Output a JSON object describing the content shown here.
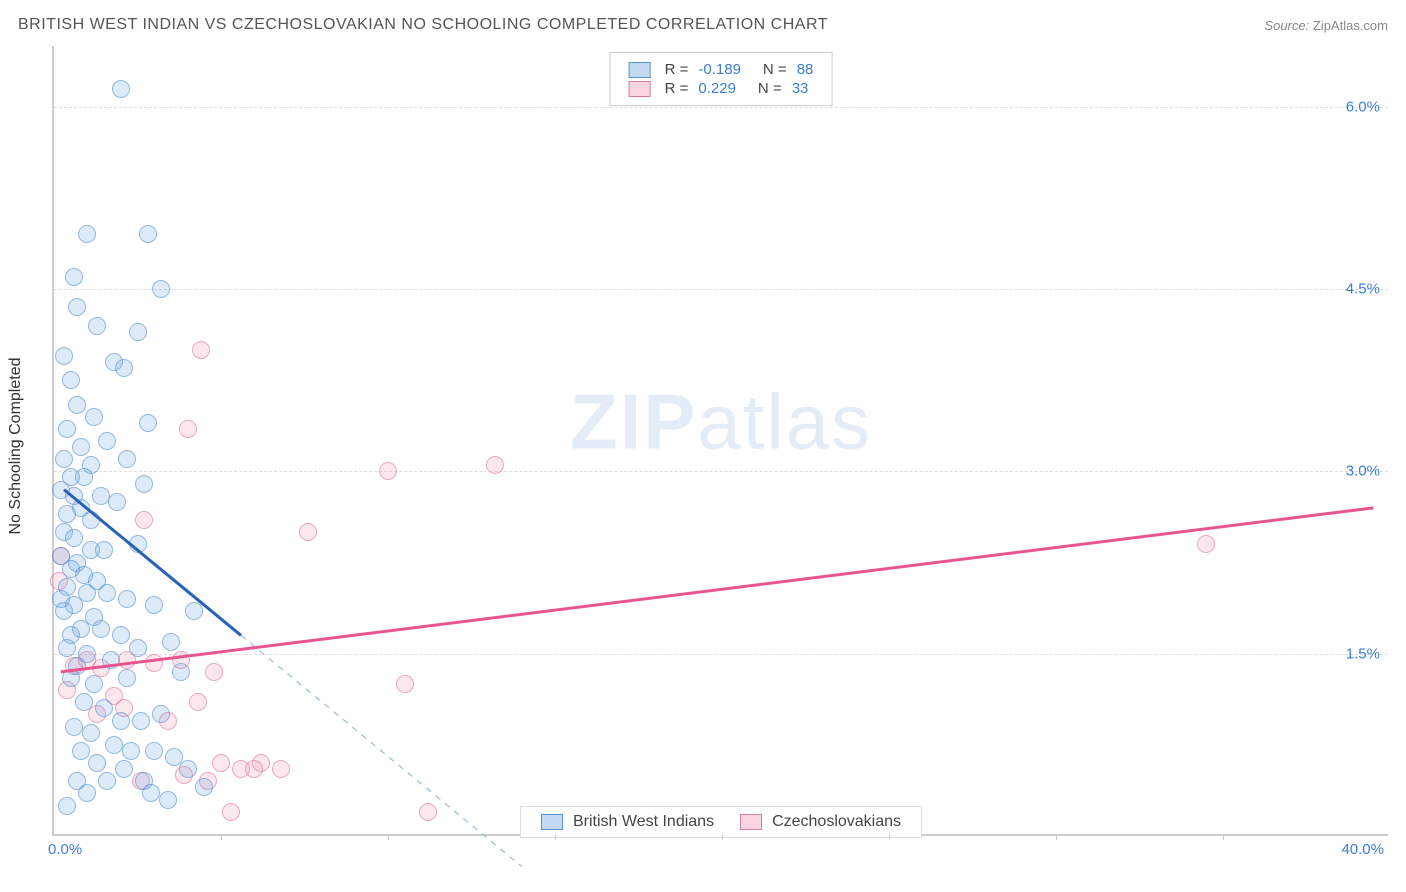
{
  "header": {
    "title": "BRITISH WEST INDIAN VS CZECHOSLOVAKIAN NO SCHOOLING COMPLETED CORRELATION CHART",
    "source_label": "Source:",
    "source_value": "ZipAtlas.com"
  },
  "chart": {
    "type": "scatter",
    "ylabel": "No Schooling Completed",
    "background_color": "#ffffff",
    "grid_color": "#dddddd",
    "axis_color": "#cccccc",
    "xlim": [
      0,
      40
    ],
    "ylim": [
      0,
      6.5
    ],
    "yticks": [
      1.5,
      3.0,
      4.5,
      6.0
    ],
    "ytick_labels": [
      "1.5%",
      "3.0%",
      "4.5%",
      "6.0%"
    ],
    "xtick_marks": [
      5,
      10,
      15,
      20,
      25,
      30,
      35
    ],
    "xmin_label": "0.0%",
    "xmax_label": "40.0%",
    "ytick_label_color": "#3b7dd8",
    "xtick_label_color": "#3b7dd8",
    "watermark": {
      "bold": "ZIP",
      "light": "atlas",
      "color": "rgba(100,150,210,0.18)",
      "fontsize": 78
    },
    "series": {
      "blue": {
        "label": "British West Indians",
        "color_fill": "rgba(107,163,226,0.35)",
        "color_stroke": "#5a93cf",
        "trend_color": "#2a62b8",
        "trend_width": 3,
        "dashed_ext_color": "#9bb8d8",
        "R": "-0.189",
        "N": "88",
        "trend": {
          "x1": 0.3,
          "y1": 2.85,
          "x2": 5.6,
          "y2": 1.65
        },
        "dashed_ext": {
          "x1": 5.6,
          "y1": 1.65,
          "x2": 14.0,
          "y2": -0.25
        },
        "points": [
          [
            2.0,
            6.15
          ],
          [
            1.0,
            4.95
          ],
          [
            2.8,
            4.95
          ],
          [
            0.6,
            4.6
          ],
          [
            3.2,
            4.5
          ],
          [
            0.7,
            4.35
          ],
          [
            1.3,
            4.2
          ],
          [
            2.5,
            4.15
          ],
          [
            0.3,
            3.95
          ],
          [
            1.8,
            3.9
          ],
          [
            2.1,
            3.85
          ],
          [
            0.5,
            3.75
          ],
          [
            0.7,
            3.55
          ],
          [
            1.2,
            3.45
          ],
          [
            2.8,
            3.4
          ],
          [
            0.4,
            3.35
          ],
          [
            0.8,
            3.2
          ],
          [
            1.6,
            3.25
          ],
          [
            0.3,
            3.1
          ],
          [
            1.1,
            3.05
          ],
          [
            2.2,
            3.1
          ],
          [
            0.5,
            2.95
          ],
          [
            0.9,
            2.95
          ],
          [
            0.2,
            2.85
          ],
          [
            0.6,
            2.8
          ],
          [
            1.4,
            2.8
          ],
          [
            0.8,
            2.7
          ],
          [
            0.4,
            2.65
          ],
          [
            1.1,
            2.6
          ],
          [
            1.9,
            2.75
          ],
          [
            2.7,
            2.9
          ],
          [
            0.3,
            2.5
          ],
          [
            0.6,
            2.45
          ],
          [
            1.1,
            2.35
          ],
          [
            0.2,
            2.3
          ],
          [
            0.7,
            2.25
          ],
          [
            1.5,
            2.35
          ],
          [
            0.5,
            2.2
          ],
          [
            0.9,
            2.15
          ],
          [
            1.3,
            2.1
          ],
          [
            2.5,
            2.4
          ],
          [
            0.4,
            2.05
          ],
          [
            1.0,
            2.0
          ],
          [
            0.2,
            1.95
          ],
          [
            0.6,
            1.9
          ],
          [
            1.6,
            2.0
          ],
          [
            2.2,
            1.95
          ],
          [
            0.3,
            1.85
          ],
          [
            1.2,
            1.8
          ],
          [
            0.8,
            1.7
          ],
          [
            3.0,
            1.9
          ],
          [
            0.5,
            1.65
          ],
          [
            1.4,
            1.7
          ],
          [
            2.0,
            1.65
          ],
          [
            4.2,
            1.85
          ],
          [
            0.4,
            1.55
          ],
          [
            1.0,
            1.5
          ],
          [
            2.5,
            1.55
          ],
          [
            3.5,
            1.6
          ],
          [
            0.7,
            1.4
          ],
          [
            1.7,
            1.45
          ],
          [
            0.5,
            1.3
          ],
          [
            1.2,
            1.25
          ],
          [
            2.2,
            1.3
          ],
          [
            3.8,
            1.35
          ],
          [
            0.9,
            1.1
          ],
          [
            1.5,
            1.05
          ],
          [
            2.0,
            0.95
          ],
          [
            0.6,
            0.9
          ],
          [
            1.1,
            0.85
          ],
          [
            2.6,
            0.95
          ],
          [
            3.2,
            1.0
          ],
          [
            1.8,
            0.75
          ],
          [
            0.8,
            0.7
          ],
          [
            2.3,
            0.7
          ],
          [
            3.0,
            0.7
          ],
          [
            1.3,
            0.6
          ],
          [
            2.1,
            0.55
          ],
          [
            3.6,
            0.65
          ],
          [
            0.7,
            0.45
          ],
          [
            1.6,
            0.45
          ],
          [
            2.7,
            0.45
          ],
          [
            4.0,
            0.55
          ],
          [
            1.0,
            0.35
          ],
          [
            0.4,
            0.25
          ],
          [
            2.9,
            0.35
          ],
          [
            3.4,
            0.3
          ],
          [
            4.5,
            0.4
          ]
        ]
      },
      "pink": {
        "label": "Czechoslovakians",
        "color_fill": "rgba(240,150,175,0.35)",
        "color_stroke": "#dd7ba0",
        "trend_color": "#e8548e",
        "trend_width": 3,
        "R": "0.229",
        "N": "33",
        "trend": {
          "x1": 0.2,
          "y1": 1.35,
          "x2": 39.5,
          "y2": 2.7
        },
        "points": [
          [
            0.2,
            2.3
          ],
          [
            0.15,
            2.1
          ],
          [
            4.4,
            4.0
          ],
          [
            4.0,
            3.35
          ],
          [
            7.6,
            2.5
          ],
          [
            10.0,
            3.0
          ],
          [
            13.2,
            3.05
          ],
          [
            34.5,
            2.4
          ],
          [
            2.7,
            2.6
          ],
          [
            1.8,
            1.15
          ],
          [
            0.6,
            1.4
          ],
          [
            1.0,
            1.45
          ],
          [
            1.4,
            1.38
          ],
          [
            2.2,
            1.45
          ],
          [
            3.0,
            1.42
          ],
          [
            3.8,
            1.45
          ],
          [
            4.8,
            1.35
          ],
          [
            0.4,
            1.2
          ],
          [
            1.3,
            1.0
          ],
          [
            2.1,
            1.05
          ],
          [
            3.4,
            0.95
          ],
          [
            4.3,
            1.1
          ],
          [
            5.0,
            0.6
          ],
          [
            5.6,
            0.55
          ],
          [
            6.2,
            0.6
          ],
          [
            5.3,
            0.2
          ],
          [
            6.0,
            0.55
          ],
          [
            6.8,
            0.55
          ],
          [
            10.5,
            1.25
          ],
          [
            11.2,
            0.2
          ],
          [
            2.6,
            0.45
          ],
          [
            3.9,
            0.5
          ],
          [
            4.6,
            0.45
          ]
        ]
      }
    },
    "legend_top": {
      "border_color": "#cccccc",
      "text_color": "#444444",
      "value_color": "#3b7dd8",
      "R_label": "R =",
      "N_label": "N ="
    },
    "legend_bottom": {
      "border_color": "#dddddd",
      "text_color": "#444444"
    }
  }
}
